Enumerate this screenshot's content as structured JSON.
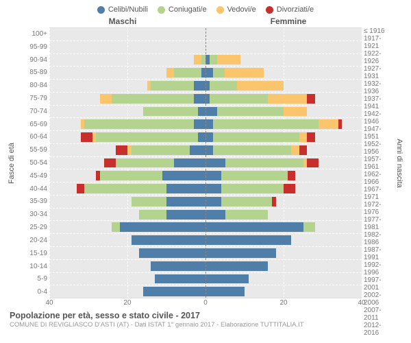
{
  "chart": {
    "type": "population-pyramid",
    "background_color": "#ffffff",
    "plot_background": "#e9e9e9",
    "grid_color": "#ffffff",
    "centerline_color": "#888888",
    "xmax": 40,
    "xticks": [
      0,
      20,
      40
    ],
    "legend": [
      {
        "label": "Celibi/Nubili",
        "color": "#4f7ea8"
      },
      {
        "label": "Coniugati/e",
        "color": "#b4d38e"
      },
      {
        "label": "Vedovi/e",
        "color": "#fac56c"
      },
      {
        "label": "Divorziati/e",
        "color": "#c62f2c"
      }
    ],
    "header_left": "Maschi",
    "header_right": "Femmine",
    "ylabel_left": "Fasce di età",
    "ylabel_right": "Anni di nascita",
    "rows": [
      {
        "age": "100+",
        "birth": "≤ 1916",
        "m": [
          0,
          0,
          0,
          0
        ],
        "f": [
          0,
          0,
          0,
          0
        ]
      },
      {
        "age": "95-99",
        "birth": "1917-1921",
        "m": [
          0,
          0,
          0,
          0
        ],
        "f": [
          0,
          0,
          0,
          0
        ]
      },
      {
        "age": "90-94",
        "birth": "1922-1926",
        "m": [
          0,
          1,
          2,
          0
        ],
        "f": [
          1,
          2,
          6,
          0
        ]
      },
      {
        "age": "85-89",
        "birth": "1927-1931",
        "m": [
          1,
          7,
          2,
          0
        ],
        "f": [
          2,
          3,
          10,
          0
        ]
      },
      {
        "age": "80-84",
        "birth": "1932-1936",
        "m": [
          3,
          11,
          1,
          0
        ],
        "f": [
          1,
          7,
          12,
          0
        ]
      },
      {
        "age": "75-79",
        "birth": "1937-1941",
        "m": [
          3,
          21,
          3,
          0
        ],
        "f": [
          1,
          15,
          10,
          2
        ]
      },
      {
        "age": "70-74",
        "birth": "1942-1946",
        "m": [
          2,
          14,
          0,
          0
        ],
        "f": [
          3,
          17,
          6,
          0
        ]
      },
      {
        "age": "65-69",
        "birth": "1947-1951",
        "m": [
          3,
          28,
          1,
          0
        ],
        "f": [
          2,
          27,
          5,
          1
        ]
      },
      {
        "age": "60-64",
        "birth": "1952-1956",
        "m": [
          2,
          26,
          1,
          3
        ],
        "f": [
          2,
          22,
          2,
          2
        ]
      },
      {
        "age": "55-59",
        "birth": "1957-1961",
        "m": [
          4,
          15,
          1,
          3
        ],
        "f": [
          2,
          20,
          2,
          2
        ]
      },
      {
        "age": "50-54",
        "birth": "1962-1966",
        "m": [
          8,
          15,
          0,
          3
        ],
        "f": [
          5,
          20,
          1,
          3
        ]
      },
      {
        "age": "45-49",
        "birth": "1967-1971",
        "m": [
          11,
          16,
          0,
          1
        ],
        "f": [
          4,
          17,
          0,
          2
        ]
      },
      {
        "age": "40-44",
        "birth": "1972-1976",
        "m": [
          10,
          21,
          0,
          2
        ],
        "f": [
          4,
          16,
          0,
          3
        ]
      },
      {
        "age": "35-39",
        "birth": "1977-1981",
        "m": [
          10,
          9,
          0,
          0
        ],
        "f": [
          4,
          13,
          0,
          1
        ]
      },
      {
        "age": "30-34",
        "birth": "1982-1986",
        "m": [
          10,
          7,
          0,
          0
        ],
        "f": [
          5,
          11,
          0,
          0
        ]
      },
      {
        "age": "25-29",
        "birth": "1987-1991",
        "m": [
          22,
          2,
          0,
          0
        ],
        "f": [
          25,
          3,
          0,
          0
        ]
      },
      {
        "age": "20-24",
        "birth": "1992-1996",
        "m": [
          19,
          0,
          0,
          0
        ],
        "f": [
          22,
          0,
          0,
          0
        ]
      },
      {
        "age": "15-19",
        "birth": "1997-2001",
        "m": [
          17,
          0,
          0,
          0
        ],
        "f": [
          18,
          0,
          0,
          0
        ]
      },
      {
        "age": "10-14",
        "birth": "2002-2006",
        "m": [
          14,
          0,
          0,
          0
        ],
        "f": [
          16,
          0,
          0,
          0
        ]
      },
      {
        "age": "5-9",
        "birth": "2007-2011",
        "m": [
          13,
          0,
          0,
          0
        ],
        "f": [
          11,
          0,
          0,
          0
        ]
      },
      {
        "age": "0-4",
        "birth": "2012-2016",
        "m": [
          16,
          0,
          0,
          0
        ],
        "f": [
          10,
          0,
          0,
          0
        ]
      }
    ]
  },
  "title": "Popolazione per età, sesso e stato civile - 2017",
  "subtitle": "COMUNE DI REVIGLIASCO D'ASTI (AT) - Dati ISTAT 1° gennaio 2017 - Elaborazione TUTTITALIA.IT"
}
